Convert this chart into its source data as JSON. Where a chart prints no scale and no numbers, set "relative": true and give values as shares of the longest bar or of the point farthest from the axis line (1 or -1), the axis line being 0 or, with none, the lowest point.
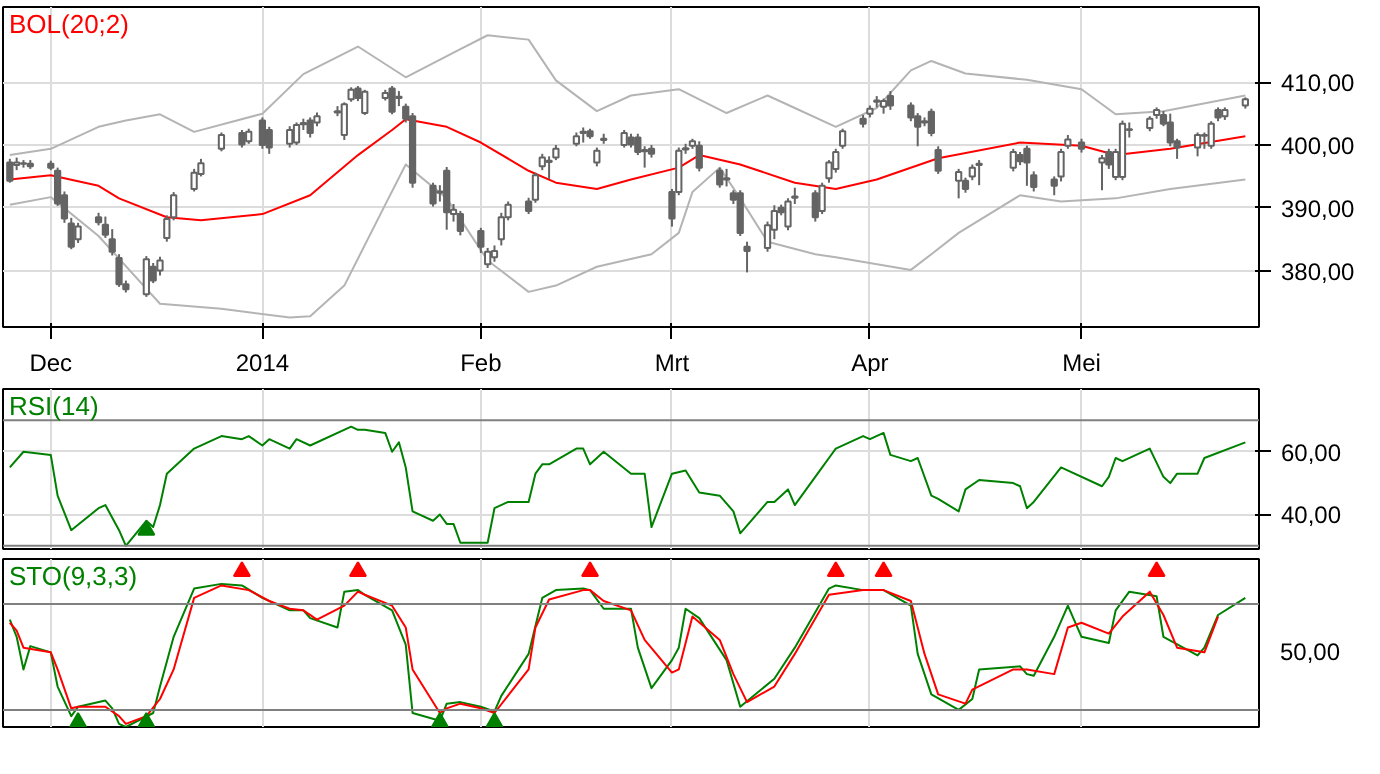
{
  "chart_data": [
    {
      "type": "candlestick",
      "title": "BOL(20;2)",
      "color": "#646464",
      "grid": true,
      "x": [
        "2013-11-26",
        "2013-11-27",
        "2013-11-28",
        "2013-11-29",
        "2013-12-02",
        "2013-12-03",
        "2013-12-04",
        "2013-12-05",
        "2013-12-06",
        "2013-12-09",
        "2013-12-10",
        "2013-12-11",
        "2013-12-12",
        "2013-12-13",
        "2013-12-16",
        "2013-12-17",
        "2013-12-18",
        "2013-12-19",
        "2013-12-20",
        "2013-12-23",
        "2013-12-24",
        "2013-12-27",
        "2013-12-30",
        "2013-12-31",
        "2014-01-02",
        "2014-01-03",
        "2014-01-06",
        "2014-01-07",
        "2014-01-08",
        "2014-01-09",
        "2014-01-10",
        "2014-01-13",
        "2014-01-14",
        "2014-01-15",
        "2014-01-16",
        "2014-01-17",
        "2014-01-20",
        "2014-01-21",
        "2014-01-22",
        "2014-01-23",
        "2014-01-24",
        "2014-01-27",
        "2014-01-28",
        "2014-01-29",
        "2014-01-30",
        "2014-01-31",
        "2014-02-03",
        "2014-02-04",
        "2014-02-05",
        "2014-02-06",
        "2014-02-07",
        "2014-02-10",
        "2014-02-11",
        "2014-02-12",
        "2014-02-13",
        "2014-02-14",
        "2014-02-17",
        "2014-02-18",
        "2014-02-19",
        "2014-02-20",
        "2014-02-21",
        "2014-02-24",
        "2014-02-25",
        "2014-02-26",
        "2014-02-27",
        "2014-02-28",
        "2014-03-03",
        "2014-03-04",
        "2014-03-05",
        "2014-03-06",
        "2014-03-07",
        "2014-03-10",
        "2014-03-11",
        "2014-03-12",
        "2014-03-13",
        "2014-03-14",
        "2014-03-17",
        "2014-03-18",
        "2014-03-19",
        "2014-03-20",
        "2014-03-21",
        "2014-03-24",
        "2014-03-25",
        "2014-03-26",
        "2014-03-27",
        "2014-03-28",
        "2014-03-31",
        "2014-04-01",
        "2014-04-02",
        "2014-04-03",
        "2014-04-04",
        "2014-04-07",
        "2014-04-08",
        "2014-04-09",
        "2014-04-10",
        "2014-04-11",
        "2014-04-14",
        "2014-04-15",
        "2014-04-16",
        "2014-04-17",
        "2014-04-22",
        "2014-04-23",
        "2014-04-24",
        "2014-04-25",
        "2014-04-28",
        "2014-04-29",
        "2014-04-30",
        "2014-05-02",
        "2014-05-05",
        "2014-05-06",
        "2014-05-07",
        "2014-05-08",
        "2014-05-09",
        "2014-05-12",
        "2014-05-13",
        "2014-05-14",
        "2014-05-15",
        "2014-05-16",
        "2014-05-19",
        "2014-05-20",
        "2014-05-21",
        "2014-05-22",
        "2014-05-23",
        "2014-05-26"
      ],
      "ohlc": [
        [
          397.2,
          397.8,
          394.0,
          394.3
        ],
        [
          396.8,
          398.0,
          396.0,
          397.2
        ],
        [
          397.0,
          397.6,
          396.4,
          397.1
        ],
        [
          397.0,
          397.6,
          396.2,
          396.6
        ],
        [
          397.0,
          397.5,
          396.0,
          396.4
        ],
        [
          395.9,
          396.4,
          390.3,
          390.7
        ],
        [
          392.0,
          392.6,
          387.6,
          388.3
        ],
        [
          387.5,
          388.4,
          383.4,
          383.8
        ],
        [
          385.0,
          387.6,
          384.4,
          387.0
        ],
        [
          388.5,
          389.2,
          387.2,
          387.7
        ],
        [
          387.3,
          388.6,
          385.2,
          385.7
        ],
        [
          385.0,
          386.6,
          382.4,
          383.0
        ],
        [
          382.0,
          382.6,
          377.4,
          377.8
        ],
        [
          377.8,
          378.4,
          376.5,
          377.0
        ],
        [
          376.2,
          382.3,
          375.8,
          381.8
        ],
        [
          380.6,
          381.2,
          378.0,
          378.4
        ],
        [
          380.0,
          382.2,
          379.2,
          381.6
        ],
        [
          385.2,
          388.8,
          384.6,
          388.2
        ],
        [
          388.5,
          392.5,
          388.0,
          392.0
        ],
        [
          393.0,
          396.2,
          392.6,
          395.6
        ],
        [
          395.4,
          397.8,
          395.0,
          397.1
        ],
        [
          399.4,
          402.0,
          399.0,
          401.6
        ],
        [
          401.9,
          402.4,
          399.6,
          400.1
        ],
        [
          400.6,
          402.6,
          400.2,
          402.1
        ],
        [
          403.9,
          404.4,
          399.4,
          400.0
        ],
        [
          402.4,
          402.9,
          398.6,
          399.6
        ],
        [
          400.2,
          403.0,
          399.6,
          402.4
        ],
        [
          400.4,
          403.6,
          400.0,
          403.2
        ],
        [
          403.3,
          404.2,
          402.4,
          403.5
        ],
        [
          403.9,
          404.4,
          401.2,
          401.9
        ],
        [
          403.6,
          405.2,
          403.0,
          404.6
        ],
        [
          405.2,
          406.2,
          404.6,
          405.4
        ],
        [
          401.6,
          406.8,
          400.8,
          406.5
        ],
        [
          407.3,
          409.2,
          406.9,
          408.8
        ],
        [
          409.0,
          409.4,
          407.0,
          407.5
        ],
        [
          405.1,
          408.8,
          404.8,
          408.5
        ],
        [
          407.5,
          408.8,
          407.1,
          408.3
        ],
        [
          409.0,
          409.4,
          404.9,
          405.3
        ],
        [
          407.7,
          408.6,
          406.2,
          407.5
        ],
        [
          406.1,
          406.6,
          403.6,
          404.2
        ],
        [
          404.6,
          405.1,
          393.2,
          394.0
        ],
        [
          393.5,
          394.0,
          390.2,
          390.7
        ],
        [
          392.6,
          393.6,
          391.0,
          392.4
        ],
        [
          395.9,
          396.5,
          386.5,
          389.3
        ],
        [
          389.0,
          390.6,
          387.8,
          389.7
        ],
        [
          389.0,
          389.5,
          385.6,
          386.3
        ],
        [
          386.3,
          386.8,
          382.8,
          383.8
        ],
        [
          381.0,
          383.6,
          380.4,
          383.0
        ],
        [
          382.1,
          384.0,
          381.4,
          383.1
        ],
        [
          385.0,
          389.2,
          384.0,
          388.5
        ],
        [
          388.5,
          391.0,
          388.0,
          390.5
        ],
        [
          391.0,
          391.6,
          389.0,
          389.5
        ],
        [
          391.3,
          395.6,
          390.8,
          395.2
        ],
        [
          396.6,
          398.6,
          396.0,
          398.0
        ],
        [
          397.3,
          398.2,
          394.6,
          397.5
        ],
        [
          398.0,
          400.0,
          397.6,
          399.4
        ],
        [
          400.2,
          402.0,
          399.8,
          401.4
        ],
        [
          401.9,
          402.8,
          400.4,
          402.1
        ],
        [
          402.2,
          402.6,
          401.0,
          401.4
        ],
        [
          397.2,
          399.6,
          396.6,
          399.1
        ],
        [
          400.8,
          401.8,
          400.2,
          401.0
        ],
        [
          400.0,
          402.4,
          399.6,
          401.9
        ],
        [
          401.2,
          401.8,
          399.6,
          400.1
        ],
        [
          401.2,
          401.8,
          398.4,
          398.9
        ],
        [
          399.0,
          399.8,
          396.4,
          399.2
        ],
        [
          399.4,
          400.0,
          398.0,
          398.6
        ],
        [
          392.5,
          393.0,
          387.0,
          388.3
        ],
        [
          392.5,
          399.6,
          392.0,
          399.1
        ],
        [
          399.3,
          400.2,
          398.6,
          399.5
        ],
        [
          399.9,
          401.0,
          399.4,
          400.6
        ],
        [
          399.9,
          400.6,
          395.8,
          396.4
        ],
        [
          395.9,
          396.4,
          393.2,
          393.7
        ],
        [
          394.5,
          396.2,
          393.4,
          394.7
        ],
        [
          392.3,
          392.8,
          390.6,
          391.3
        ],
        [
          392.3,
          392.8,
          385.5,
          386.0
        ],
        [
          383.8,
          384.6,
          379.7,
          383.1
        ],
        [
          383.6,
          387.8,
          383.0,
          387.2
        ],
        [
          386.5,
          390.4,
          385.0,
          389.5
        ],
        [
          390.0,
          390.5,
          388.8,
          389.3
        ],
        [
          387.0,
          391.5,
          386.4,
          391.0
        ],
        [
          391.6,
          393.2,
          390.6,
          391.8
        ],
        [
          392.3,
          392.8,
          387.8,
          388.5
        ],
        [
          389.5,
          394.0,
          389.0,
          393.5
        ],
        [
          394.7,
          397.6,
          394.0,
          397.2
        ],
        [
          396.2,
          399.4,
          395.6,
          398.9
        ],
        [
          399.9,
          402.6,
          399.4,
          402.2
        ],
        [
          404.2,
          404.8,
          402.8,
          403.4
        ],
        [
          405.0,
          406.3,
          404.4,
          405.8
        ],
        [
          406.9,
          407.8,
          406.0,
          407.1
        ],
        [
          406.1,
          407.4,
          405.0,
          407.0
        ],
        [
          407.8,
          408.6,
          405.6,
          406.3
        ],
        [
          406.3,
          406.8,
          403.8,
          404.4
        ],
        [
          404.6,
          405.1,
          399.8,
          402.9
        ],
        [
          403.6,
          404.4,
          403.0,
          403.8
        ],
        [
          405.3,
          405.8,
          401.4,
          401.9
        ],
        [
          399.2,
          399.8,
          395.4,
          395.9
        ],
        [
          394.3,
          396.2,
          391.5,
          395.7
        ],
        [
          394.3,
          394.8,
          392.4,
          393.0
        ],
        [
          395.0,
          396.9,
          394.4,
          396.4
        ],
        [
          396.8,
          397.6,
          393.6,
          397.0
        ],
        [
          396.4,
          399.4,
          395.8,
          398.9
        ],
        [
          398.4,
          398.9,
          396.8,
          397.4
        ],
        [
          399.4,
          399.9,
          393.5,
          397.2
        ],
        [
          395.2,
          395.8,
          392.6,
          393.3
        ],
        [
          394.5,
          395.0,
          392.0,
          393.5
        ],
        [
          395.0,
          399.4,
          394.2,
          398.9
        ],
        [
          399.9,
          401.6,
          399.4,
          400.9
        ],
        [
          400.4,
          401.0,
          398.8,
          399.4
        ],
        [
          397.2,
          398.4,
          392.8,
          397.9
        ],
        [
          398.9,
          399.4,
          396.2,
          396.9
        ],
        [
          394.9,
          399.4,
          394.4,
          398.9
        ],
        [
          394.9,
          403.9,
          394.4,
          403.4
        ],
        [
          402.4,
          403.6,
          401.2,
          402.5
        ],
        [
          402.7,
          404.6,
          402.2,
          404.2
        ],
        [
          404.8,
          406.0,
          404.2,
          405.6
        ],
        [
          404.8,
          405.4,
          403.0,
          403.4
        ],
        [
          403.6,
          405.0,
          399.8,
          400.4
        ],
        [
          400.6,
          401.0,
          397.8,
          399.6
        ],
        [
          399.6,
          402.0,
          398.2,
          401.6
        ],
        [
          401.5,
          402.0,
          399.4,
          401.6
        ],
        [
          399.9,
          403.8,
          399.4,
          403.4
        ],
        [
          405.6,
          406.0,
          403.8,
          404.4
        ],
        [
          404.6,
          406.0,
          404.0,
          405.6
        ],
        [
          406.3,
          407.6,
          405.8,
          407.3
        ]
      ],
      "series": [
        {
          "type": "line",
          "color": "#b4b4b4",
          "x": [
            "2013-11-26",
            "2013-12-02",
            "2013-12-09",
            "2013-12-13",
            "2013-12-18",
            "2013-12-23",
            "2014-01-02",
            "2014-01-08",
            "2014-01-16",
            "2014-01-23",
            "2014-01-31",
            "2014-02-04",
            "2014-02-10",
            "2014-02-14",
            "2014-02-20",
            "2014-02-25",
            "2014-03-04",
            "2014-03-11",
            "2014-03-17",
            "2014-03-21",
            "2014-03-27",
            "2014-04-02",
            "2014-04-07",
            "2014-04-10",
            "2014-04-15",
            "2014-04-24",
            "2014-05-02",
            "2014-05-07",
            "2014-05-14",
            "2014-05-26"
          ],
          "values": [
            398.4,
            399.4,
            402.9,
            403.9,
            404.9,
            402.1,
            405.0,
            411.3,
            415.7,
            410.8,
            415.3,
            417.5,
            416.8,
            410.3,
            405.4,
            407.9,
            408.9,
            405.1,
            407.9,
            405.9,
            402.9,
            405.9,
            411.9,
            413.4,
            411.4,
            410.4,
            408.9,
            404.9,
            405.4,
            407.9
          ]
        },
        {
          "type": "line",
          "color": "#ff0000",
          "x": [
            "2013-11-26",
            "2013-12-02",
            "2013-12-09",
            "2013-12-12",
            "2013-12-19",
            "2013-12-24",
            "2014-01-02",
            "2014-01-09",
            "2014-01-16",
            "2014-01-21",
            "2014-01-23",
            "2014-01-29",
            "2014-02-03",
            "2014-02-10",
            "2014-02-14",
            "2014-02-20",
            "2014-02-25",
            "2014-03-04",
            "2014-03-07",
            "2014-03-13",
            "2014-03-21",
            "2014-03-27",
            "2014-04-02",
            "2014-04-11",
            "2014-04-23",
            "2014-05-02",
            "2014-05-07",
            "2014-05-15",
            "2014-05-26"
          ],
          "values": [
            394.5,
            395.2,
            393.5,
            391.5,
            388.5,
            388.0,
            389.0,
            392.0,
            398.4,
            402.4,
            404.1,
            402.9,
            400.4,
            395.9,
            394.0,
            393.0,
            394.5,
            396.4,
            398.4,
            396.9,
            394.0,
            393.0,
            394.5,
            397.9,
            400.4,
            399.9,
            398.4,
            399.4,
            401.4
          ]
        },
        {
          "type": "line",
          "color": "#b4b4b4",
          "x": [
            "2013-11-26",
            "2013-12-02",
            "2013-12-09",
            "2013-12-18",
            "2013-12-27",
            "2014-01-06",
            "2014-01-09",
            "2014-01-14",
            "2014-01-20",
            "2014-01-23",
            "2014-01-29",
            "2014-02-04",
            "2014-02-10",
            "2014-02-14",
            "2014-02-20",
            "2014-02-28",
            "2014-03-04",
            "2014-03-06",
            "2014-03-10",
            "2014-03-13",
            "2014-03-17",
            "2014-03-24",
            "2014-03-27",
            "2014-04-07",
            "2014-04-10",
            "2014-04-14",
            "2014-04-23",
            "2014-04-29",
            "2014-05-07",
            "2014-05-15",
            "2014-05-26"
          ],
          "values": [
            390.5,
            391.7,
            385.5,
            374.7,
            373.9,
            372.5,
            372.7,
            377.6,
            390.5,
            396.9,
            391.5,
            381.6,
            376.6,
            377.6,
            380.6,
            382.6,
            386.0,
            392.5,
            396.4,
            391.5,
            384.6,
            382.6,
            382.1,
            380.1,
            382.6,
            386.0,
            392.0,
            391.0,
            391.5,
            393.0,
            394.5
          ]
        }
      ],
      "xlim": [
        "2013-11-25",
        "2014-05-28"
      ],
      "xticks": [
        {
          "value": "2013-12-02",
          "label": "Dec"
        },
        {
          "value": "2014-01-02",
          "label": "2014"
        },
        {
          "value": "2014-02-03",
          "label": "Feb"
        },
        {
          "value": "2014-03-03",
          "label": "Mrt"
        },
        {
          "value": "2014-04-01",
          "label": "Apr"
        },
        {
          "value": "2014-05-02",
          "label": "Mei"
        }
      ],
      "ylim": [
        371,
        422
      ],
      "yticks": [
        {
          "value": 380,
          "label": "380,00"
        },
        {
          "value": 390,
          "label": "390,00"
        },
        {
          "value": 400,
          "label": "400,00"
        },
        {
          "value": 410,
          "label": "410,00"
        }
      ]
    },
    {
      "type": "line",
      "title": "RSI(14)",
      "grid": true,
      "tick_labels": "y",
      "series": [
        {
          "color": "#008000",
          "x": [
            "2013-11-26",
            "2013-11-28",
            "2013-12-02",
            "2013-12-03",
            "2013-12-05",
            "2013-12-09",
            "2013-12-10",
            "2013-12-12",
            "2013-12-13",
            "2013-12-16",
            "2013-12-17",
            "2013-12-18",
            "2013-12-19",
            "2013-12-23",
            "2013-12-27",
            "2013-12-30",
            "2013-12-31",
            "2014-01-02",
            "2014-01-03",
            "2014-01-06",
            "2014-01-07",
            "2014-01-09",
            "2014-01-15",
            "2014-01-16",
            "2014-01-17",
            "2014-01-20",
            "2014-01-21",
            "2014-01-22",
            "2014-01-23",
            "2014-01-24",
            "2014-01-27",
            "2014-01-28",
            "2014-01-29",
            "2014-01-30",
            "2014-01-31",
            "2014-02-04",
            "2014-02-05",
            "2014-02-07",
            "2014-02-10",
            "2014-02-11",
            "2014-02-12",
            "2014-02-13",
            "2014-02-17",
            "2014-02-18",
            "2014-02-19",
            "2014-02-21",
            "2014-02-25",
            "2014-02-27",
            "2014-02-28",
            "2014-03-03",
            "2014-03-05",
            "2014-03-07",
            "2014-03-10",
            "2014-03-12",
            "2014-03-13",
            "2014-03-17",
            "2014-03-18",
            "2014-03-20",
            "2014-03-21",
            "2014-03-25",
            "2014-03-26",
            "2014-03-27",
            "2014-03-31",
            "2014-04-01",
            "2014-04-03",
            "2014-04-04",
            "2014-04-07",
            "2014-04-08",
            "2014-04-10",
            "2014-04-11",
            "2014-04-14",
            "2014-04-15",
            "2014-04-17",
            "2014-04-22",
            "2014-04-23",
            "2014-04-24",
            "2014-04-25",
            "2014-04-29",
            "2014-05-05",
            "2014-05-06",
            "2014-05-07",
            "2014-05-08",
            "2014-05-12",
            "2014-05-14",
            "2014-05-15",
            "2014-05-16",
            "2014-05-19",
            "2014-05-20",
            "2014-05-26"
          ],
          "values": [
            55,
            60,
            59,
            46,
            35,
            42,
            43,
            35,
            30,
            38,
            36,
            43,
            53,
            61,
            65,
            64,
            65,
            62,
            64,
            61,
            64,
            62,
            68,
            67,
            67,
            66,
            60,
            63,
            55,
            41,
            38,
            40,
            37,
            37,
            31,
            31,
            42,
            44,
            44,
            53,
            56,
            56,
            61,
            61,
            56,
            60,
            53,
            53,
            36,
            53,
            54,
            47,
            46,
            41,
            34,
            44,
            44,
            48,
            43,
            55,
            58,
            61,
            65,
            64,
            66,
            59,
            57,
            58,
            46,
            45,
            41,
            48,
            51,
            50,
            49,
            42,
            44,
            55,
            49,
            52,
            58,
            57,
            61,
            52,
            50,
            53,
            53,
            58,
            63
          ]
        },
        {
          "type": "scatter",
          "marker": "triangle",
          "color": "#008000",
          "x": [
            "2013-12-16"
          ],
          "values": [
            35
          ]
        }
      ],
      "ref_lines": [
        {
          "axis": "y",
          "value": 70,
          "color": "#808080"
        },
        {
          "axis": "y",
          "value": 30,
          "color": "#808080"
        }
      ],
      "xlim": [
        "2013-11-25",
        "2014-05-28"
      ],
      "xticks": [
        {
          "value": "2013-12-02",
          "label": null
        },
        {
          "value": "2014-01-02",
          "label": null
        },
        {
          "value": "2014-02-03",
          "label": null
        },
        {
          "value": "2014-03-03",
          "label": null
        },
        {
          "value": "2014-04-01",
          "label": null
        },
        {
          "value": "2014-05-02",
          "label": null
        }
      ],
      "ylim": [
        29,
        80
      ],
      "yticks": [
        {
          "value": 40,
          "label": "40,00"
        },
        {
          "value": 60,
          "label": "60,00"
        }
      ]
    },
    {
      "type": "line",
      "title": "STO(9,3,3)",
      "grid": "x",
      "tick_labels": false,
      "relative": true,
      "annotations": [
        "50,00"
      ],
      "series": [
        {
          "color": "#008000",
          "x": [
            "2013-11-26",
            "2013-11-27",
            "2013-11-28",
            "2013-11-29",
            "2013-12-02",
            "2013-12-03",
            "2013-12-05",
            "2013-12-06",
            "2013-12-10",
            "2013-12-11",
            "2013-12-12",
            "2013-12-13",
            "2013-12-17",
            "2013-12-18",
            "2013-12-20",
            "2013-12-23",
            "2013-12-27",
            "2013-12-30",
            "2014-01-02",
            "2014-01-06",
            "2014-01-08",
            "2014-01-09",
            "2014-01-13",
            "2014-01-14",
            "2014-01-16",
            "2014-01-17",
            "2014-01-21",
            "2014-01-23",
            "2014-01-24",
            "2014-01-28",
            "2014-01-29",
            "2014-01-31",
            "2014-02-03",
            "2014-02-05",
            "2014-02-06",
            "2014-02-10",
            "2014-02-12",
            "2014-02-14",
            "2014-02-18",
            "2014-02-19",
            "2014-02-21",
            "2014-02-25",
            "2014-02-26",
            "2014-02-28",
            "2014-03-03",
            "2014-03-04",
            "2014-03-05",
            "2014-03-07",
            "2014-03-11",
            "2014-03-13",
            "2014-03-18",
            "2014-03-21",
            "2014-03-26",
            "2014-03-27",
            "2014-03-31",
            "2014-04-03",
            "2014-04-07",
            "2014-04-08",
            "2014-04-10",
            "2014-04-14",
            "2014-04-16",
            "2014-04-17",
            "2014-04-23",
            "2014-04-24",
            "2014-04-25",
            "2014-04-28",
            "2014-04-30",
            "2014-05-02",
            "2014-05-06",
            "2014-05-07",
            "2014-05-09",
            "2014-05-13",
            "2014-05-14",
            "2014-05-19",
            "2014-05-20",
            "2014-05-22",
            "2014-05-26"
          ],
          "values": [
            0.69,
            0.58,
            0.37,
            0.52,
            0.48,
            0.26,
            0.07,
            0.13,
            0.17,
            0.12,
            0.02,
            0,
            0.09,
            0.26,
            0.58,
            0.89,
            0.92,
            0.91,
            0.83,
            0.75,
            0.75,
            0.7,
            0.64,
            0.87,
            0.88,
            0.85,
            0.75,
            0.53,
            0.09,
            0.04,
            0.15,
            0.16,
            0.13,
            0.1,
            0.2,
            0.47,
            0.83,
            0.88,
            0.89,
            0.88,
            0.76,
            0.76,
            0.51,
            0.25,
            0.43,
            0.51,
            0.76,
            0.7,
            0.43,
            0.13,
            0.31,
            0.51,
            0.89,
            0.91,
            0.88,
            0.88,
            0.78,
            0.47,
            0.21,
            0.11,
            0.18,
            0.37,
            0.39,
            0.34,
            0.33,
            0.58,
            0.78,
            0.58,
            0.54,
            0.75,
            0.87,
            0.84,
            0.58,
            0.46,
            0.51,
            0.72,
            0.83
          ]
        },
        {
          "color": "#ff0000",
          "x": [
            "2013-11-26",
            "2013-11-27",
            "2013-11-28",
            "2013-12-02",
            "2013-12-03",
            "2013-12-05",
            "2013-12-06",
            "2013-12-10",
            "2013-12-12",
            "2013-12-13",
            "2013-12-16",
            "2013-12-18",
            "2013-12-20",
            "2013-12-23",
            "2013-12-27",
            "2013-12-31",
            "2014-01-03",
            "2014-01-06",
            "2014-01-08",
            "2014-01-10",
            "2014-01-14",
            "2014-01-16",
            "2014-01-17",
            "2014-01-21",
            "2014-01-23",
            "2014-01-24",
            "2014-01-28",
            "2014-01-29",
            "2014-01-31",
            "2014-02-03",
            "2014-02-05",
            "2014-02-10",
            "2014-02-11",
            "2014-02-13",
            "2014-02-18",
            "2014-02-19",
            "2014-02-21",
            "2014-02-25",
            "2014-02-27",
            "2014-03-03",
            "2014-03-04",
            "2014-03-06",
            "2014-03-10",
            "2014-03-12",
            "2014-03-14",
            "2014-03-18",
            "2014-03-21",
            "2014-03-26",
            "2014-03-31",
            "2014-04-03",
            "2014-04-07",
            "2014-04-09",
            "2014-04-11",
            "2014-04-15",
            "2014-04-16",
            "2014-04-22",
            "2014-04-24",
            "2014-04-28",
            "2014-04-30",
            "2014-05-02",
            "2014-05-06",
            "2014-05-08",
            "2014-05-12",
            "2014-05-14",
            "2014-05-16",
            "2014-05-20",
            "2014-05-22"
          ],
          "values": [
            0.67,
            0.62,
            0.51,
            0.48,
            0.37,
            0.12,
            0.13,
            0.13,
            0.07,
            0.02,
            0.07,
            0.18,
            0.37,
            0.83,
            0.91,
            0.88,
            0.81,
            0.76,
            0.75,
            0.69,
            0.78,
            0.87,
            0.85,
            0.78,
            0.64,
            0.37,
            0.09,
            0.12,
            0.15,
            0.12,
            0.09,
            0.37,
            0.64,
            0.82,
            0.88,
            0.88,
            0.81,
            0.75,
            0.56,
            0.35,
            0.37,
            0.71,
            0.56,
            0.34,
            0.16,
            0.26,
            0.47,
            0.85,
            0.88,
            0.88,
            0.81,
            0.47,
            0.21,
            0.15,
            0.24,
            0.37,
            0.37,
            0.34,
            0.64,
            0.67,
            0.6,
            0.71,
            0.87,
            0.72,
            0.51,
            0.48,
            0.71
          ]
        },
        {
          "type": "scatter",
          "marker": "triangle",
          "color": "#ff0000",
          "x": [
            "2013-12-30",
            "2014-01-16",
            "2014-02-19",
            "2014-03-27",
            "2014-04-03",
            "2014-05-13"
          ],
          "values": [
            1,
            1,
            1,
            1,
            1,
            1
          ]
        },
        {
          "type": "scatter",
          "marker": "triangle",
          "color": "#008000",
          "x": [
            "2013-12-06",
            "2013-12-16",
            "2014-01-28",
            "2014-02-05"
          ],
          "values": [
            0.03,
            0.03,
            0.03,
            0.03
          ]
        }
      ],
      "ref_lines": [
        {
          "axis": "y",
          "value": 0.79,
          "color": "#808080"
        },
        {
          "axis": "y",
          "value": 0.11,
          "color": "#808080"
        }
      ],
      "xlim": [
        "2013-11-25",
        "2014-05-28"
      ],
      "xticks": [
        {
          "value": "2013-12-02",
          "label": null
        },
        {
          "value": "2014-01-02",
          "label": null
        },
        {
          "value": "2014-02-03",
          "label": null
        },
        {
          "value": "2014-03-03",
          "label": null
        },
        {
          "value": "2014-04-01",
          "label": null
        },
        {
          "value": "2014-05-02",
          "label": null
        }
      ]
    }
  ]
}
